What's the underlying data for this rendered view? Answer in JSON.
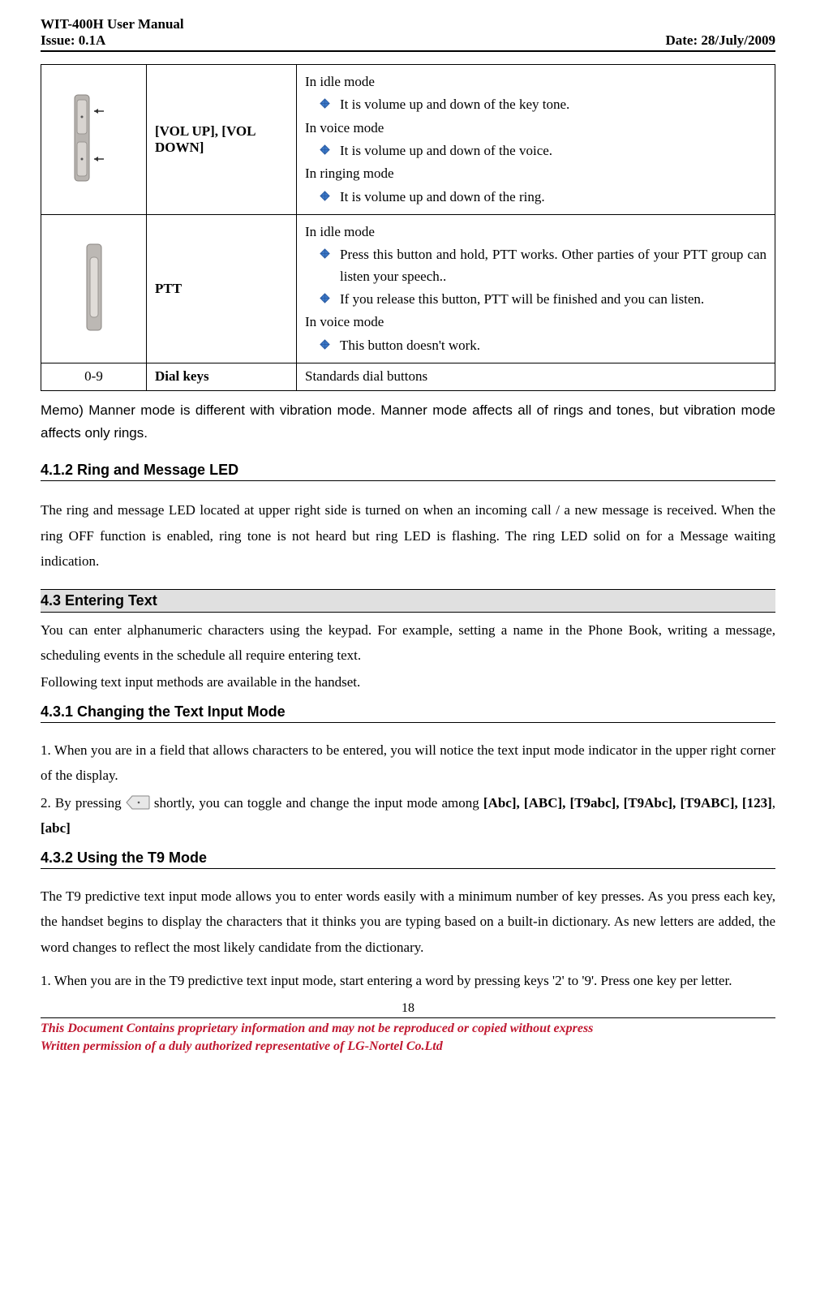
{
  "header": {
    "title_left_1": "WIT-400H User Manual",
    "title_left_2": "Issue: 0.1A",
    "title_right": "Date: 28/July/2009"
  },
  "table": {
    "rows": [
      {
        "icon": "vol",
        "key_label": " [VOL UP], [VOL DOWN]",
        "desc_blocks": [
          {
            "type": "mode",
            "text": "In idle mode"
          },
          {
            "type": "bullet",
            "text": "It is volume up and down of the key tone."
          },
          {
            "type": "mode",
            "text": "In voice mode"
          },
          {
            "type": "bullet",
            "text": "It is volume up and down of the voice."
          },
          {
            "type": "mode",
            "text": "In ringing mode"
          },
          {
            "type": "bullet",
            "text": "It is volume up and down of the ring."
          }
        ]
      },
      {
        "icon": "ptt",
        "key_label": " PTT",
        "desc_blocks": [
          {
            "type": "mode",
            "text": "In idle mode"
          },
          {
            "type": "bullet",
            "text": "Press this button and hold, PTT works. Other parties of your PTT group can listen your speech.."
          },
          {
            "type": "bullet",
            "text": "If you release this button, PTT will be finished and you can listen."
          },
          {
            "type": "mode",
            "text": "In voice mode"
          },
          {
            "type": "bullet",
            "text": "This button doesn't work."
          }
        ]
      },
      {
        "icon": "none",
        "icon_text": "0-9",
        "key_label": " Dial keys",
        "desc_plain": " Standards dial buttons"
      }
    ]
  },
  "memo": "Memo) Manner mode is different with vibration mode. Manner mode affects all of rings and tones, but vibration mode affects only rings.",
  "sec_412": {
    "heading": "4.1.2   Ring and Message LED",
    "para": "The ring and message LED located at upper right side is turned on when an incoming call / a new message is received. When the ring OFF function is enabled, ring tone is not heard but ring LED is flashing. The ring LED solid on for a Message waiting indication."
  },
  "sec_43": {
    "heading": "4.3      Entering Text",
    "para1": "You can enter alphanumeric characters using the keypad. For example, setting a name in the Phone Book, writing a message, scheduling events in the schedule all require entering text.",
    "para2": "Following text input methods are available in the handset."
  },
  "sec_431": {
    "heading": "4.3.1   Changing the Text Input Mode",
    "para1": "1. When you are in a field that allows characters to be entered, you will notice the text input mode indicator in the upper right corner of the display.",
    "para2a": "2. By pressing ",
    "para2b": " shortly, you can toggle and change the input mode among ",
    "bold_modes": "[Abc], [ABC], [T9abc], [T9Abc], [T9ABC], [123]",
    "para2c": ", ",
    "bold_modes2": "[abc]"
  },
  "sec_432": {
    "heading": "4.3.2   Using the T9 Mode",
    "para1": "The T9 predictive text input mode allows you to enter words easily with a minimum number of key presses. As you press each key, the handset begins to display the characters that it thinks you are typing based on a built-in dictionary. As new letters are added, the word changes to reflect the most likely candidate from the dictionary.",
    "para2": "1. When you are in the T9 predictive text input mode, start entering a word by pressing keys '2' to '9'. Press one key per letter."
  },
  "page_number": "18",
  "footer": {
    "line1": "This Document Contains proprietary information and may not be reproduced or copied without express",
    "line2": "Written permission of a duly authorized representative of LG-Nortel Co.Ltd"
  },
  "colors": {
    "bullet_fill": "#3a78c8",
    "bullet_edge": "#2a5aa0",
    "footer_color": "#c01830"
  }
}
